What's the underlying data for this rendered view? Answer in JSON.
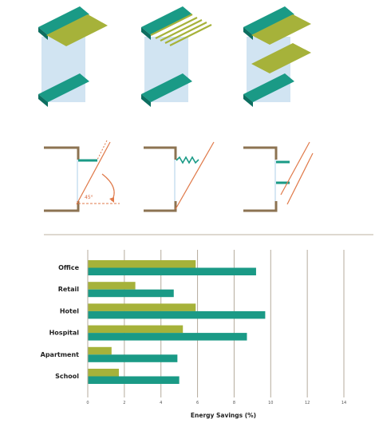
{
  "colors": {
    "teal": "#1a9a86",
    "teal_dark": "#0d6e60",
    "olive": "#a6b23a",
    "olive_light": "#c5cf62",
    "glass": "#c9dff0",
    "wall": "#8c7352",
    "sun": "#e07a4a",
    "grid": "#b5ab9c",
    "divider": "#c9c1b4"
  },
  "diagrams": {
    "shading_types": [
      {
        "name": "overhang-solid",
        "icon": "solid-overhang-icon"
      },
      {
        "name": "overhang-louvered",
        "icon": "louvered-overhang-icon"
      },
      {
        "name": "overhang-double",
        "icon": "double-overhang-icon"
      }
    ],
    "sections": [
      {
        "name": "section-solid",
        "angle_label": "45°"
      },
      {
        "name": "section-louvered"
      },
      {
        "name": "section-double"
      }
    ]
  },
  "chart_data": {
    "type": "bar",
    "orientation": "horizontal",
    "xlabel": "Energy Savings (%)",
    "xlim": [
      0,
      14
    ],
    "xticks": [
      0,
      2,
      4,
      6,
      8,
      10,
      12,
      14
    ],
    "categories": [
      "Office",
      "Retail",
      "Hotel",
      "Hospital",
      "Apartment",
      "School"
    ],
    "series": [
      {
        "key": "s1",
        "color": "#a6b23a",
        "values": [
          5.9,
          2.6,
          5.9,
          5.2,
          1.3,
          1.7
        ]
      },
      {
        "key": "s2",
        "color": "#1a9a86",
        "values": [
          9.2,
          4.7,
          9.7,
          8.7,
          4.9,
          5.0
        ]
      }
    ],
    "grid": true,
    "legend": "none"
  }
}
